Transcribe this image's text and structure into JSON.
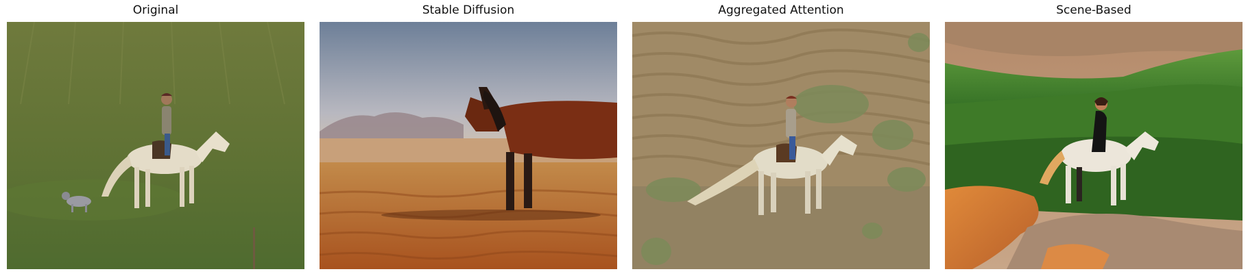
{
  "panels": [
    {
      "title": "Original"
    },
    {
      "title": "Stable Diffusion"
    },
    {
      "title": "Aggregated Attention"
    },
    {
      "title": "Scene-Based"
    }
  ]
}
